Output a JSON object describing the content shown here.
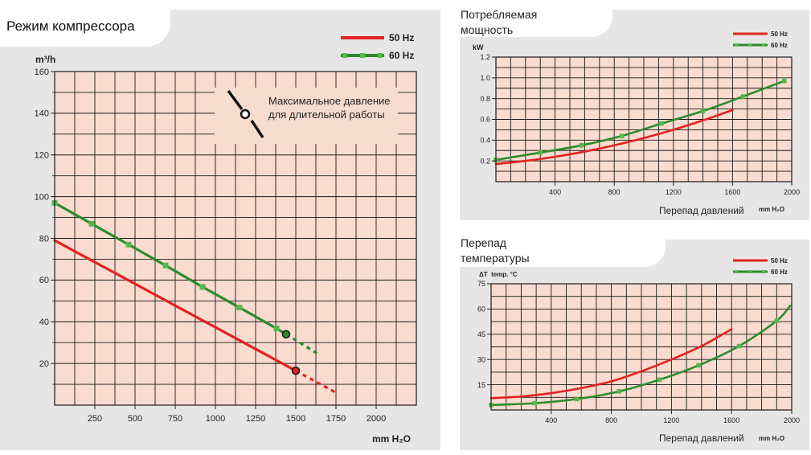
{
  "colors": {
    "panel_bg": "#e6e6e6",
    "plot_bg": "#fadbcf",
    "grid": "#1a1a1a",
    "series_50": "#e32222",
    "series_60": "#2c8c2c",
    "marker_60": "#55b84d"
  },
  "chart_data": [
    {
      "id": "compressor",
      "type": "line",
      "title": "Режим компрессора",
      "ylabel": "m³/h",
      "xlabel": "mm H₂O",
      "xlim": [
        0,
        2250
      ],
      "ylim": [
        0,
        160
      ],
      "xticks": [
        "250",
        "500",
        "750",
        "1000",
        "1250",
        "1500",
        "1750",
        "2000"
      ],
      "yticks": [
        "20",
        "40",
        "60",
        "80",
        "100",
        "120",
        "140",
        "160"
      ],
      "grid": true,
      "legend_position": "top-right",
      "legend": [
        "50 Hz",
        "60 Hz"
      ],
      "annotation": "Максимальное давление для длительной работы",
      "series": [
        {
          "name": "50 Hz",
          "x": [
            0,
            1500
          ],
          "y": [
            79,
            16.5
          ],
          "extension": {
            "x": [
              1500,
              1750
            ],
            "y": [
              16.5,
              6
            ]
          },
          "max_point": [
            1500,
            16.5
          ]
        },
        {
          "name": "60 Hz",
          "x": [
            0,
            230,
            460,
            690,
            920,
            1150,
            1380,
            1440
          ],
          "y": [
            97,
            87,
            77,
            67,
            56.7,
            46.8,
            36.8,
            34
          ],
          "extension": {
            "x": [
              1440,
              1650
            ],
            "y": [
              34,
              24
            ]
          },
          "max_point": [
            1440,
            34
          ]
        }
      ]
    },
    {
      "id": "power",
      "type": "line",
      "title": "Потребляемая мощность",
      "ylabel": "kW",
      "xlabel": "Перепад давлений",
      "xunit": "mm H₂O",
      "xlim": [
        0,
        2000
      ],
      "ylim": [
        0,
        1.2
      ],
      "xticks": [
        "400",
        "800",
        "1200",
        "1600",
        "2000"
      ],
      "yticks": [
        "0.2",
        "0.4",
        "0.6",
        "0.8",
        "1.0",
        "1.2"
      ],
      "grid": true,
      "legend_position": "top-right",
      "legend": [
        "50 Hz",
        "60 Hz"
      ],
      "series": [
        {
          "name": "50 Hz",
          "x": [
            0,
            200,
            400,
            600,
            800,
            1000,
            1200,
            1400,
            1600
          ],
          "y": [
            0.17,
            0.2,
            0.24,
            0.29,
            0.35,
            0.42,
            0.5,
            0.59,
            0.69
          ]
        },
        {
          "name": "60 Hz",
          "x": [
            0,
            300,
            580,
            850,
            1120,
            1400,
            1670,
            1950
          ],
          "y": [
            0.21,
            0.28,
            0.35,
            0.44,
            0.56,
            0.68,
            0.82,
            0.97
          ]
        }
      ]
    },
    {
      "id": "temperature",
      "type": "line",
      "title": "Перепад температуры",
      "ylabel": "ΔT  temp. °C",
      "xlabel": "Перепад давлений",
      "xunit": "mm H₂O",
      "xlim": [
        0,
        2000
      ],
      "ylim": [
        0,
        75
      ],
      "xticks": [
        "400",
        "800",
        "1200",
        "1600",
        "2000"
      ],
      "yticks": [
        "15",
        "30",
        "45",
        "60",
        "75"
      ],
      "grid": true,
      "legend_position": "top-right",
      "legend": [
        "50 Hz",
        "60 Hz"
      ],
      "series": [
        {
          "name": "50 Hz",
          "x": [
            0,
            200,
            400,
            600,
            800,
            1000,
            1200,
            1400,
            1600
          ],
          "y": [
            7,
            8,
            10,
            13,
            17,
            23,
            30,
            38,
            48
          ]
        },
        {
          "name": "60 Hz",
          "x": [
            0,
            290,
            570,
            850,
            1120,
            1380,
            1650,
            1900,
            1990
          ],
          "y": [
            3,
            4,
            6.5,
            11,
            18,
            26.5,
            38,
            53,
            62
          ]
        }
      ],
      "marker_x": [
        0,
        290,
        570,
        850,
        1120,
        1380,
        1650,
        1900
      ]
    }
  ]
}
